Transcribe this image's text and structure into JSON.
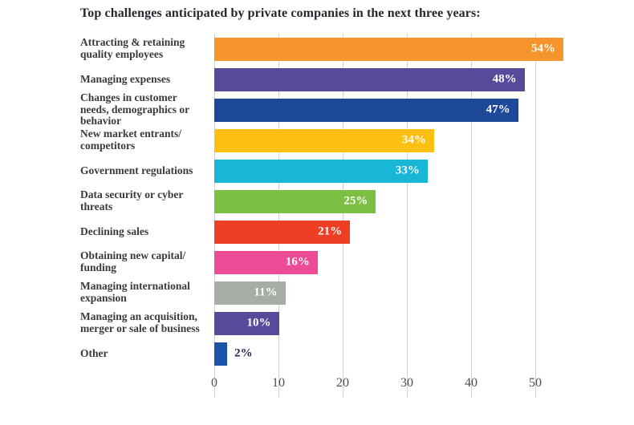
{
  "chart_data": {
    "type": "bar",
    "orientation": "horizontal",
    "title": "Top challenges anticipated by private companies in the next three years:",
    "xlabel": "",
    "ylabel": "",
    "xlim": [
      0,
      55
    ],
    "ticks": [
      0,
      10,
      20,
      30,
      40,
      50
    ],
    "grid": true,
    "unit": "%",
    "categories": [
      "Attracting & retaining quality employees",
      "Managing expenses",
      "Changes in customer needs, demographics or behavior",
      "New market entrants/ competitors",
      "Government regulations",
      "Data security or cyber threats",
      "Declining sales",
      "Obtaining new capital/ funding",
      "Managing international expansion",
      "Managing an acquisition, merger or sale of business",
      "Other"
    ],
    "values": [
      54,
      48,
      47,
      34,
      33,
      25,
      21,
      16,
      11,
      10,
      2
    ],
    "items": [
      {
        "label": "Attracting & retaining quality employees",
        "value": 54,
        "display": "54%",
        "color": "#F6952B",
        "value_inside": true
      },
      {
        "label": "Managing expenses",
        "value": 48,
        "display": "48%",
        "color": "#564B9B",
        "value_inside": true
      },
      {
        "label": "Changes in customer needs, demographics or behavior",
        "value": 47,
        "display": "47%",
        "color": "#1E4899",
        "value_inside": true
      },
      {
        "label": "New market entrants/ competitors",
        "value": 34,
        "display": "34%",
        "color": "#FCC013",
        "value_inside": true
      },
      {
        "label": "Government regulations",
        "value": 33,
        "display": "33%",
        "color": "#19B7D6",
        "value_inside": true
      },
      {
        "label": "Data security or cyber threats",
        "value": 25,
        "display": "25%",
        "color": "#7DBF42",
        "value_inside": true
      },
      {
        "label": "Declining sales",
        "value": 21,
        "display": "21%",
        "color": "#EE3E24",
        "value_inside": true
      },
      {
        "label": "Obtaining new capital/ funding",
        "value": 16,
        "display": "16%",
        "color": "#EC4B96",
        "value_inside": true
      },
      {
        "label": "Managing international expansion",
        "value": 11,
        "display": "11%",
        "color": "#A5ADA5",
        "value_inside": true
      },
      {
        "label": "Managing an acquisition, merger or sale of business",
        "value": 10,
        "display": "10%",
        "color": "#564B9B",
        "value_inside": true
      },
      {
        "label": "Other",
        "value": 2,
        "display": "2%",
        "color": "#1A55A7",
        "value_inside": false
      }
    ]
  }
}
